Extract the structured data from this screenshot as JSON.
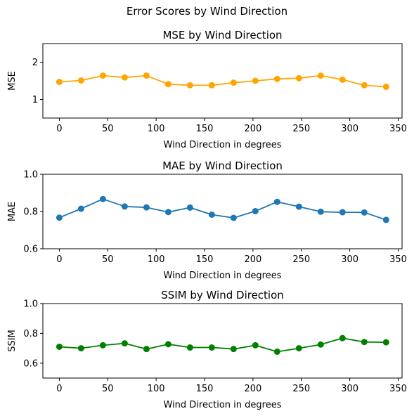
{
  "suptitle": "Error Scores by Wind Direction",
  "chart_data": [
    {
      "type": "line",
      "title": "MSE by Wind Direction",
      "xlabel": "Wind Direction in degrees",
      "ylabel": "MSE",
      "color": "#ffa500",
      "x": [
        0,
        22.5,
        45,
        67.5,
        90,
        112.5,
        135,
        157.5,
        180,
        202.5,
        225,
        247.5,
        270,
        292.5,
        315,
        337.5
      ],
      "values": [
        1.47,
        1.51,
        1.64,
        1.59,
        1.64,
        1.41,
        1.38,
        1.38,
        1.45,
        1.5,
        1.55,
        1.57,
        1.64,
        1.53,
        1.38,
        1.34
      ],
      "xlim": [
        -17,
        354
      ],
      "ylim": [
        0.5,
        2.5
      ],
      "xticks": [
        0,
        50,
        100,
        150,
        200,
        250,
        300,
        350
      ],
      "yticks": [
        1,
        2
      ],
      "ytick_labels": [
        "1",
        "2"
      ]
    },
    {
      "type": "line",
      "title": "MAE by Wind Direction",
      "xlabel": "Wind Direction in degrees",
      "ylabel": "MAE",
      "color": "#1f77b4",
      "x": [
        0,
        22.5,
        45,
        67.5,
        90,
        112.5,
        135,
        157.5,
        180,
        202.5,
        225,
        247.5,
        270,
        292.5,
        315,
        337.5
      ],
      "values": [
        0.767,
        0.815,
        0.867,
        0.827,
        0.822,
        0.797,
        0.821,
        0.783,
        0.766,
        0.802,
        0.852,
        0.826,
        0.799,
        0.796,
        0.795,
        0.755
      ],
      "xlim": [
        -17,
        354
      ],
      "ylim": [
        0.6,
        1.0
      ],
      "xticks": [
        0,
        50,
        100,
        150,
        200,
        250,
        300,
        350
      ],
      "yticks": [
        0.6,
        0.8,
        1.0
      ],
      "ytick_labels": [
        "0.6",
        "0.8",
        "1.0"
      ]
    },
    {
      "type": "line",
      "title": "SSIM by Wind Direction",
      "xlabel": "Wind Direction in degrees",
      "ylabel": "SSIM",
      "color": "#008000",
      "x": [
        0,
        22.5,
        45,
        67.5,
        90,
        112.5,
        135,
        157.5,
        180,
        202.5,
        225,
        247.5,
        270,
        292.5,
        315,
        337.5
      ],
      "values": [
        0.71,
        0.7,
        0.72,
        0.733,
        0.695,
        0.727,
        0.705,
        0.705,
        0.695,
        0.72,
        0.677,
        0.7,
        0.725,
        0.768,
        0.742,
        0.74
      ],
      "xlim": [
        -17,
        354
      ],
      "ylim": [
        0.5,
        1.0
      ],
      "xticks": [
        0,
        50,
        100,
        150,
        200,
        250,
        300,
        350
      ],
      "yticks": [
        0.6,
        0.8,
        1.0
      ],
      "ytick_labels": [
        "0.6",
        "0.8",
        "1.0"
      ]
    }
  ]
}
